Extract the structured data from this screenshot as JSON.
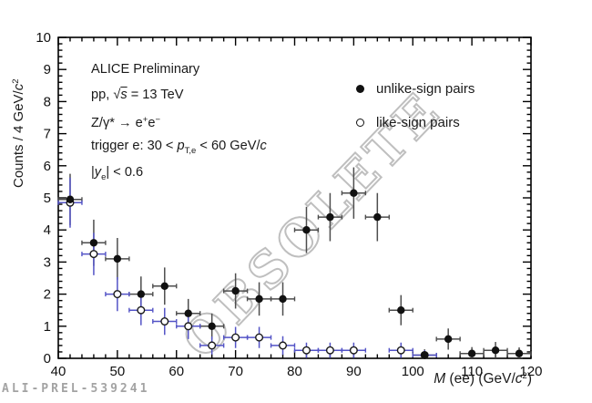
{
  "watermark": {
    "text": "OBSOLETE"
  },
  "footer": {
    "id": "ALI-PREL-539241"
  },
  "legend": {
    "entries": [
      {
        "label": "unlike-sign pairs",
        "marker": "filled-circle"
      },
      {
        "label": "like-sign pairs",
        "marker": "open-circle"
      }
    ]
  },
  "annotations": [
    {
      "segments": [
        {
          "t": "ALICE Preliminary"
        }
      ]
    },
    {
      "segments": [
        {
          "t": "pp, "
        },
        {
          "t": "√"
        },
        {
          "t": "s",
          "c": "i ov"
        },
        {
          "t": " = 13 TeV"
        }
      ]
    },
    {
      "segments": [
        {
          "t": "Z/γ* → e"
        },
        {
          "t": "+",
          "c": "sup"
        },
        {
          "t": "e"
        },
        {
          "t": "−",
          "c": "sup"
        }
      ]
    },
    {
      "segments": [
        {
          "t": "trigger e: 30 < "
        },
        {
          "t": "p",
          "c": "i"
        },
        {
          "t": "T,e",
          "c": "sub"
        },
        {
          "t": " < 60 GeV/"
        },
        {
          "t": "c",
          "c": "i"
        }
      ]
    },
    {
      "segments": [
        {
          "t": "|"
        },
        {
          "t": "y",
          "c": "i"
        },
        {
          "t": "e",
          "c": "sub"
        },
        {
          "t": "| < 0.6"
        }
      ]
    }
  ],
  "chart_data": {
    "type": "scatter",
    "title": "",
    "xlabel": "M (ee) (GeV/c2)",
    "ylabel": "Counts / 4 GeV/c2",
    "xlabel_segments": [
      {
        "t": "M",
        "c": "i"
      },
      {
        "t": " (ee) (GeV/"
      },
      {
        "t": "c",
        "c": "i"
      },
      {
        "t": "2",
        "c": "sup"
      },
      {
        "t": ")"
      }
    ],
    "ylabel_segments": [
      {
        "t": "Counts / 4 GeV/"
      },
      {
        "t": "c",
        "c": "i"
      },
      {
        "t": "2",
        "c": "sup"
      }
    ],
    "xlim": [
      40,
      120
    ],
    "ylim": [
      0,
      10
    ],
    "x_major_ticks": [
      40,
      50,
      60,
      70,
      80,
      90,
      100,
      110,
      120
    ],
    "x_minor_step": 2,
    "y_major_ticks": [
      0,
      1,
      2,
      3,
      4,
      5,
      6,
      7,
      8,
      9,
      10
    ],
    "y_minor_step": 0.2,
    "bin_width": 4,
    "grid": false,
    "legend_position": "top-right",
    "series": [
      {
        "name": "unlike-sign pairs",
        "marker": "filled-circle",
        "marker_color": "#111111",
        "errbar_color": "#4d4d4d",
        "x": [
          42,
          46,
          50,
          54,
          58,
          62,
          66,
          70,
          74,
          78,
          82,
          86,
          90,
          94,
          98,
          102,
          106,
          110,
          114,
          118
        ],
        "y": [
          4.95,
          3.6,
          3.1,
          2.0,
          2.25,
          1.4,
          1.0,
          2.1,
          1.85,
          1.85,
          4.0,
          4.4,
          5.15,
          4.4,
          1.5,
          0.1,
          0.6,
          0.15,
          0.25,
          0.15
        ],
        "yerr": [
          0.8,
          0.72,
          0.65,
          0.55,
          0.58,
          0.45,
          0.4,
          0.55,
          0.52,
          0.52,
          0.72,
          0.75,
          0.8,
          0.75,
          0.47,
          0.18,
          0.33,
          0.2,
          0.26,
          0.19
        ],
        "xerr": 2
      },
      {
        "name": "like-sign pairs",
        "marker": "open-circle",
        "marker_color": "#1a1a1a",
        "errbar_color": "#5353c6",
        "x": [
          42,
          46,
          50,
          54,
          58,
          62,
          66,
          70,
          74,
          78,
          82,
          86,
          90,
          98,
          102
        ],
        "y": [
          4.85,
          3.25,
          2.0,
          1.5,
          1.15,
          1.0,
          0.4,
          0.65,
          0.65,
          0.4,
          0.25,
          0.25,
          0.25,
          0.25,
          0.1
        ],
        "yerr": [
          0.78,
          0.66,
          0.53,
          0.47,
          0.42,
          0.4,
          0.28,
          0.33,
          0.33,
          0.29,
          0.24,
          0.24,
          0.24,
          0.24,
          0.15
        ],
        "xerr": 2
      }
    ]
  }
}
